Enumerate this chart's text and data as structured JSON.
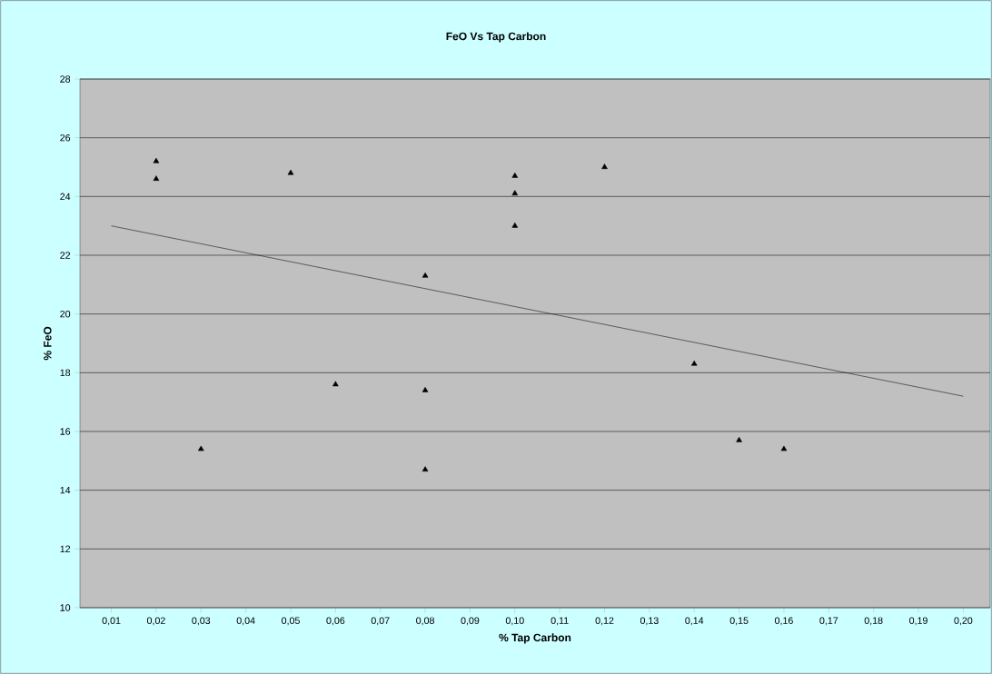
{
  "chart_data": {
    "type": "scatter",
    "title": "FeO Vs Tap Carbon",
    "xlabel": "% Tap Carbon",
    "ylabel": "% FeO",
    "series": [
      {
        "color": "#000000",
        "x": [
          0.02,
          0.02,
          0.03,
          0.05,
          0.06,
          0.08,
          0.08,
          0.08,
          0.1,
          0.1,
          0.1,
          0.12,
          0.14,
          0.15,
          0.16
        ],
        "values": [
          25.2,
          24.6,
          15.4,
          24.8,
          17.6,
          21.3,
          17.4,
          14.7,
          24.7,
          24.1,
          23.0,
          25.0,
          18.3,
          15.7,
          15.4
        ]
      },
      {
        "type": "line",
        "marker": "none",
        "color": "#000000",
        "x": [
          0.01,
          0.2
        ],
        "values": [
          23.0,
          17.2
        ]
      }
    ],
    "marker": "triangle",
    "grid": "y",
    "xlim": [
      0.003,
      0.206
    ],
    "ylim": [
      10,
      28
    ],
    "xticks": [
      {
        "value": 0.01,
        "label": "0,01"
      },
      {
        "value": 0.02,
        "label": "0,02"
      },
      {
        "value": 0.03,
        "label": "0,03"
      },
      {
        "value": 0.04,
        "label": "0,04"
      },
      {
        "value": 0.05,
        "label": "0,05"
      },
      {
        "value": 0.06,
        "label": "0,06"
      },
      {
        "value": 0.07,
        "label": "0,07"
      },
      {
        "value": 0.08,
        "label": "0,08"
      },
      {
        "value": 0.09,
        "label": "0,09"
      },
      {
        "value": 0.1,
        "label": "0,10"
      },
      {
        "value": 0.11,
        "label": "0,11"
      },
      {
        "value": 0.12,
        "label": "0,12"
      },
      {
        "value": 0.13,
        "label": "0,13"
      },
      {
        "value": 0.14,
        "label": "0,14"
      },
      {
        "value": 0.15,
        "label": "0,15"
      },
      {
        "value": 0.16,
        "label": "0,16"
      },
      {
        "value": 0.17,
        "label": "0,17"
      },
      {
        "value": 0.18,
        "label": "0,18"
      },
      {
        "value": 0.19,
        "label": "0,19"
      },
      {
        "value": 0.2,
        "label": "0,20"
      }
    ],
    "yticks": [
      10,
      12,
      14,
      16,
      18,
      20,
      22,
      24,
      26,
      28
    ]
  }
}
